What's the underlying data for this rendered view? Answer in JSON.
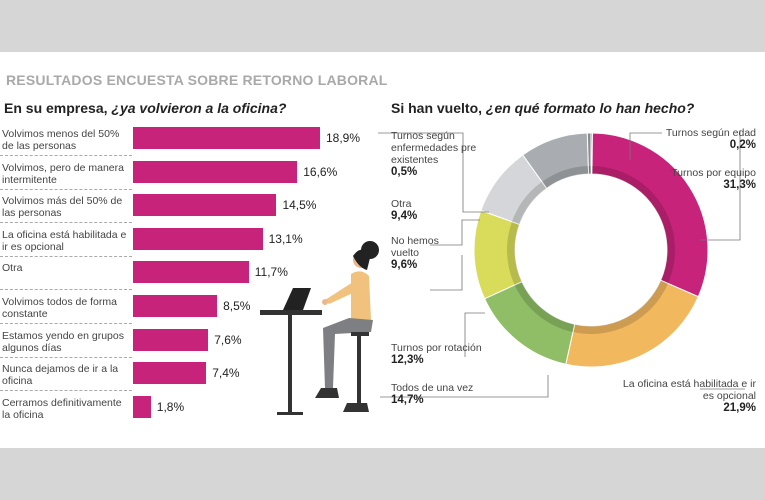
{
  "title": "RESULTADOS ENCUESTA SOBRE RETORNO LABORAL",
  "chart_data": [
    {
      "type": "bar",
      "orientation": "horizontal",
      "title_plain": "En su empresa, ",
      "title_italic": "¿ya volvieron a la oficina?",
      "categories": [
        "Volvimos menos del 50% de las personas",
        "Volvimos, pero de manera intermitente",
        "Volvimos más del 50% de las personas",
        "La oficina está habilitada e ir es opcional",
        "Otra",
        "Volvimos todos de forma constante",
        "Estamos yendo en grupos algunos días",
        "Nunca dejamos de ir a la oficina",
        "Cerramos definitivamente la oficina"
      ],
      "values": [
        18.9,
        16.6,
        14.5,
        13.1,
        11.7,
        8.5,
        7.6,
        7.4,
        1.8
      ],
      "value_labels": [
        "18,9%",
        "16,6%",
        "14,5%",
        "13,1%",
        "11,7%",
        "8,5%",
        "7,6%",
        "7,4%",
        "1,8%"
      ],
      "color": "#c8237a"
    },
    {
      "type": "pie",
      "donut": true,
      "title_plain": "Si han vuelto, ",
      "title_italic": "¿en qué formato lo han hecho?",
      "slices": [
        {
          "label": "Turnos según edad",
          "value": 0.2,
          "value_label": "0,2%",
          "color": "#6f7378"
        },
        {
          "label": "Turnos por equipo",
          "value": 31.3,
          "value_label": "31,3%",
          "color": "#c8237a"
        },
        {
          "label": "La oficina está habilitada e ir es opcional",
          "value": 21.9,
          "value_label": "21,9%",
          "color": "#f2b85e"
        },
        {
          "label": "Todos de una vez",
          "value": 14.7,
          "value_label": "14,7%",
          "color": "#8fbe66"
        },
        {
          "label": "Turnos por rotación",
          "value": 12.3,
          "value_label": "12,3%",
          "color": "#d8dc5a"
        },
        {
          "label": "No hemos vuelto",
          "value": 9.6,
          "value_label": "9,6%",
          "color": "#d4d6d9"
        },
        {
          "label": "Otra",
          "value": 9.4,
          "value_label": "9,4%",
          "color": "#a9acb0"
        },
        {
          "label": "Turnos según enfermedades pre existentes",
          "value": 0.5,
          "value_label": "0,5%",
          "color": "#888b8f"
        }
      ]
    }
  ]
}
